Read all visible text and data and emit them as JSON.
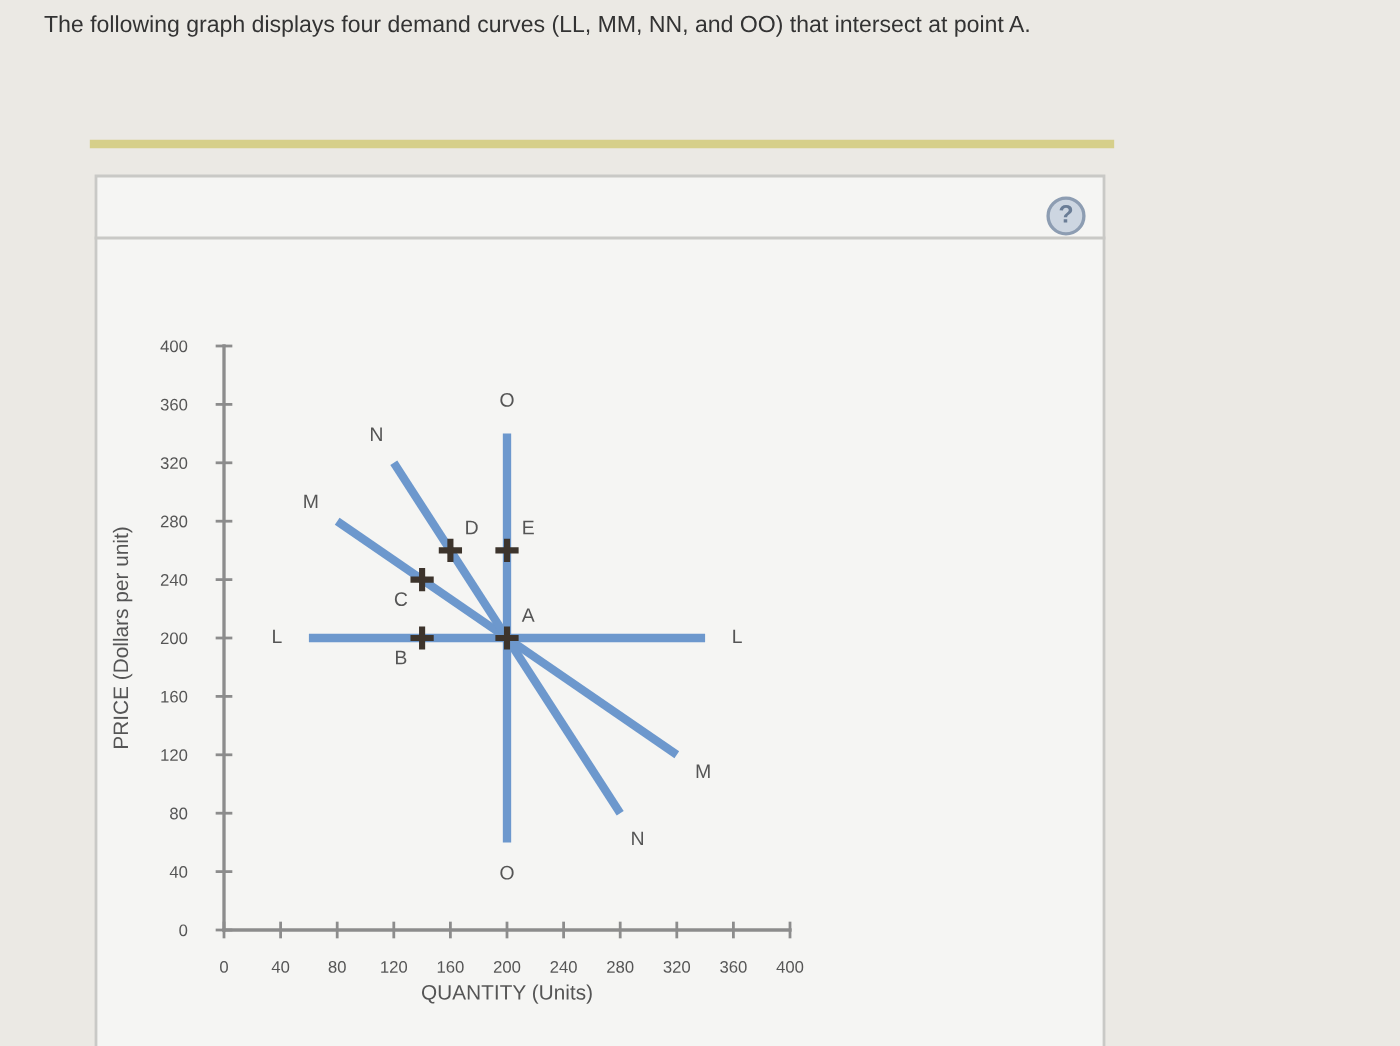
{
  "chart_data": {
    "type": "line",
    "title": "The following graph displays four demand curves (LL, MM, NN, and OO) that intersect at point A.",
    "xlabel": "QUANTITY (Units)",
    "ylabel": "PRICE (Dollars per unit)",
    "xlim": [
      0,
      400
    ],
    "ylim": [
      0,
      400
    ],
    "xticks": [
      0,
      40,
      80,
      120,
      160,
      200,
      240,
      280,
      320,
      360,
      400
    ],
    "yticks": [
      0,
      40,
      80,
      120,
      160,
      200,
      240,
      280,
      320,
      360,
      400
    ],
    "grid": false,
    "line_style": "solid",
    "marker": "none",
    "series": [
      {
        "color": "#6d98cd",
        "x": [
          60,
          340
        ],
        "values": [
          200,
          200
        ]
      },
      {
        "color": "#6d98cd",
        "x": [
          80,
          320
        ],
        "values": [
          280,
          120
        ]
      },
      {
        "color": "#6d98cd",
        "x": [
          120,
          280
        ],
        "values": [
          320,
          80
        ]
      },
      {
        "color": "#6d98cd",
        "x": [
          200,
          200
        ],
        "values": [
          340,
          60
        ]
      },
      {
        "type": "scatter",
        "marker": "cross",
        "color": "#3d342c",
        "x": [
          200,
          140,
          140,
          160,
          200
        ],
        "values": [
          200,
          200,
          240,
          260,
          260
        ]
      }
    ],
    "annotations": [
      "?",
      {
        "text": "L",
        "x": 60,
        "y": 200
      },
      {
        "text": "L",
        "x": 340,
        "y": 200
      },
      {
        "text": "M",
        "x": 80,
        "y": 280
      },
      {
        "text": "M",
        "x": 320,
        "y": 120
      },
      {
        "text": "N",
        "x": 120,
        "y": 320
      },
      {
        "text": "N",
        "x": 280,
        "y": 80
      },
      {
        "text": "O",
        "x": 200,
        "y": 340
      },
      {
        "text": "O",
        "x": 200,
        "y": 60
      },
      {
        "text": "A",
        "x": 200,
        "y": 200
      },
      {
        "text": "B",
        "x": 140,
        "y": 200
      },
      {
        "text": "C",
        "x": 140,
        "y": 240
      },
      {
        "text": "D",
        "x": 160,
        "y": 260
      },
      {
        "text": "E",
        "x": 200,
        "y": 260
      }
    ]
  }
}
